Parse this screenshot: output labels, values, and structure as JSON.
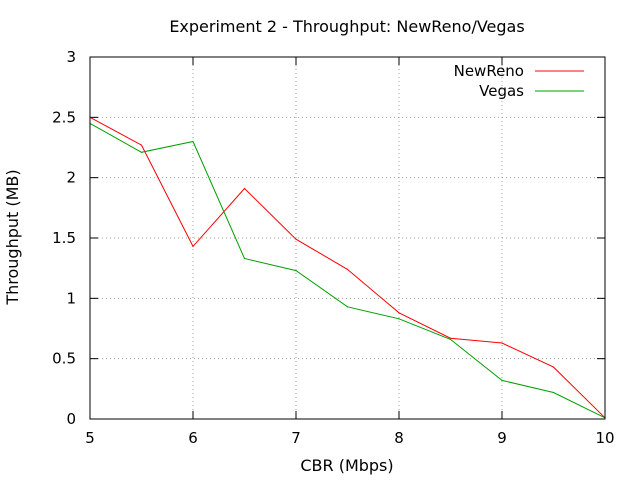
{
  "chart_data": {
    "type": "line",
    "title": "Experiment 2 - Throughput: NewReno/Vegas",
    "xlabel": "CBR (Mbps)",
    "ylabel": "Throughput (MB)",
    "xlim": [
      5,
      10
    ],
    "ylim": [
      0,
      3
    ],
    "xticks": [
      5,
      6,
      7,
      8,
      9,
      10
    ],
    "yticks": [
      0,
      0.5,
      1,
      1.5,
      2,
      2.5,
      3
    ],
    "ytick_labels": [
      "0",
      "0.5",
      "1",
      "1.5",
      "2",
      "2.5",
      "3"
    ],
    "grid": true,
    "legend_position": "top-right",
    "x": [
      5,
      5.5,
      6,
      6.5,
      7,
      7.5,
      8,
      8.5,
      9,
      9.5,
      10
    ],
    "series": [
      {
        "name": "NewReno",
        "color": "#ff0000",
        "values": [
          2.5,
          2.27,
          1.43,
          1.91,
          1.49,
          1.24,
          0.88,
          0.67,
          0.63,
          0.43,
          0.01
        ]
      },
      {
        "name": "Vegas",
        "color": "#00a000",
        "values": [
          2.45,
          2.21,
          2.3,
          1.33,
          1.23,
          0.93,
          0.83,
          0.66,
          0.32,
          0.22,
          0.01
        ]
      }
    ]
  }
}
